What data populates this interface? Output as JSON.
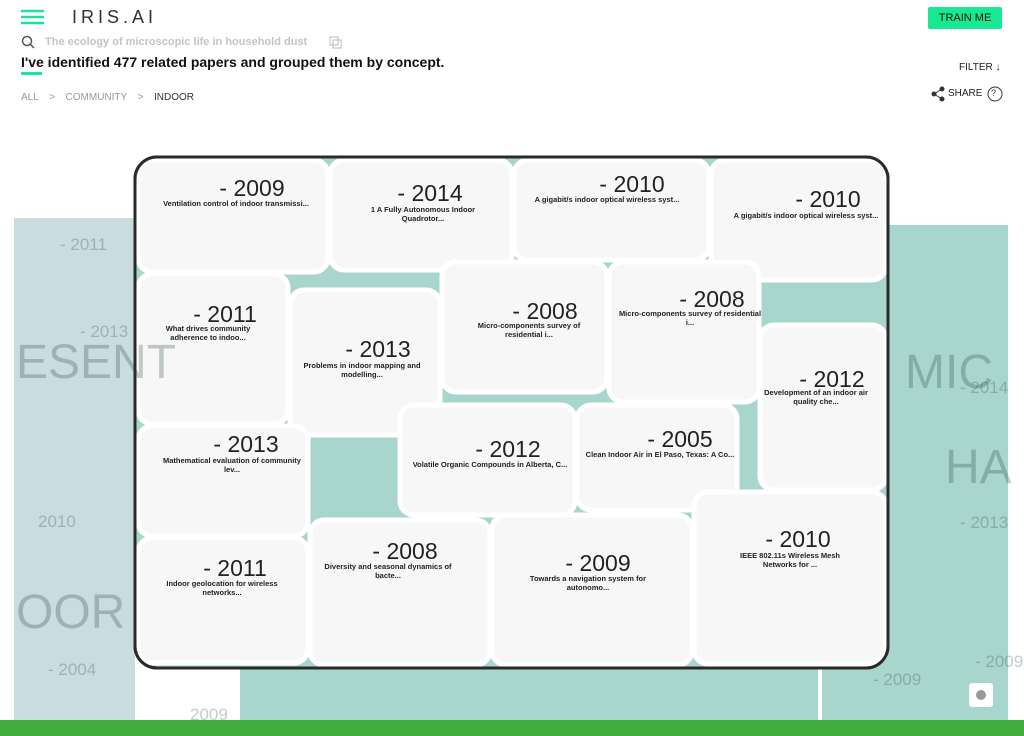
{
  "header": {
    "brand": "IRIS.AI",
    "button": "TRAIN ME"
  },
  "search": {
    "query": "The ecology of microscopic life in household dust"
  },
  "summary": "I've identified 477 related papers and grouped them by concept.",
  "filter": "FILTER",
  "breadcrumb": {
    "items": [
      "ALL",
      "COMMUNITY",
      "INDOOR"
    ],
    "separator": ">"
  },
  "share": {
    "label": "SHARE",
    "help": "?"
  },
  "cells": [
    {
      "year": "- 2009",
      "title": "Ventilation control of indoor transmissi..."
    },
    {
      "year": "- 2014",
      "title": "1 A Fully Autonomous Indoor Quadrotor..."
    },
    {
      "year": "- 2010",
      "title": "A gigabit/s indoor optical wireless syst..."
    },
    {
      "year": "- 2010",
      "title": "A gigabit/s indoor optical wireless syst..."
    },
    {
      "year": "- 2011",
      "title": "What drives community adherence to indoo..."
    },
    {
      "year": "- 2013",
      "title": "Problems in indoor mapping and modelling..."
    },
    {
      "year": "- 2008",
      "title": "Micro-components survey of residential i..."
    },
    {
      "year": "- 2008",
      "title": "Micro-components survey of residential i..."
    },
    {
      "year": "- 2012",
      "title": "Development of an indoor air quality che..."
    },
    {
      "year": "- 2013",
      "title": "Mathematical evaluation of community lev..."
    },
    {
      "year": "- 2012",
      "title": "Volatile Organic Compounds in Alberta, C..."
    },
    {
      "year": "- 2005",
      "title": "Clean Indoor Air in El Paso, Texas: A Co..."
    },
    {
      "year": "- 2011",
      "title": "Indoor geolocation for wireless networks..."
    },
    {
      "year": "- 2008",
      "title": "Diversity and seasonal dynamics of bacte..."
    },
    {
      "year": "- 2009",
      "title": "Towards a navigation system for autonomo..."
    },
    {
      "year": "- 2010",
      "title": "IEEE 802.11s Wireless Mesh Networks for ..."
    }
  ],
  "background_labels": [
    "ESENT",
    "OOR",
    "MIC",
    "HA",
    "- 2011",
    "- 2013",
    "2010",
    "- 2004",
    "2009",
    "- 2014",
    "- 2013",
    "- 2009",
    "- 2009"
  ]
}
